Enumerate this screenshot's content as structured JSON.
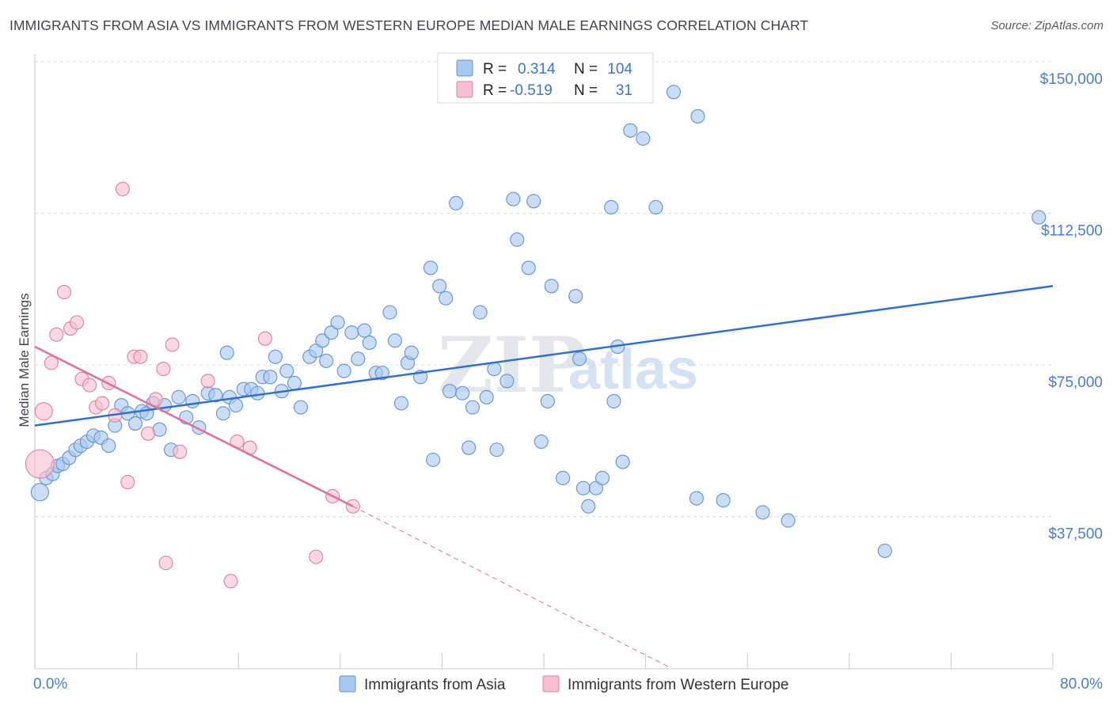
{
  "title": "IMMIGRANTS FROM ASIA VS IMMIGRANTS FROM WESTERN EUROPE MEDIAN MALE EARNINGS CORRELATION CHART",
  "source": "Source: ZipAtlas.com",
  "watermark": {
    "zip": "ZIP",
    "atlas": "atlas"
  },
  "legend": {
    "r_label": "R =",
    "n_label": "N =",
    "rows": [
      {
        "r": "0.314",
        "n": "104",
        "color": "#a9c8ef",
        "stroke": "#5f93d8"
      },
      {
        "r": "-0.519",
        "n": "31",
        "color": "#f7bfd1",
        "stroke": "#e0809f"
      }
    ]
  },
  "colors": {
    "asia_fill": "#a9c8ef",
    "asia_stroke": "#5f93d8",
    "asia_line": "#2f6fcf",
    "europe_fill": "#f7bfd1",
    "europe_stroke": "#e0809f",
    "europe_line": "#e0709a",
    "axis_text": "#4a7bd0",
    "grid": "#d8dbe0"
  },
  "chart_data": {
    "type": "scatter",
    "xlabel": "",
    "ylabel": "Median Male Earnings",
    "xlim": [
      0,
      80
    ],
    "ylim": [
      0,
      150000
    ],
    "x_tick_labels": [
      "0.0%",
      "80.0%"
    ],
    "y_ticks": [
      37500,
      75000,
      112500,
      150000
    ],
    "y_tick_labels": [
      "$37,500",
      "$75,000",
      "$112,500",
      "$150,000"
    ],
    "grid": true,
    "legend_position": "top-center",
    "series": [
      {
        "name": "Immigrants from Asia",
        "trend": {
          "x": [
            0,
            80
          ],
          "y": [
            60000,
            94500
          ]
        },
        "points": [
          [
            0.4,
            43500
          ],
          [
            0.9,
            47000
          ],
          [
            1.4,
            48000
          ],
          [
            1.8,
            50000
          ],
          [
            2.2,
            50500
          ],
          [
            2.7,
            52000
          ],
          [
            3.2,
            54000
          ],
          [
            3.6,
            55000
          ],
          [
            4.1,
            56000
          ],
          [
            4.6,
            57500
          ],
          [
            5.2,
            57000
          ],
          [
            5.8,
            55000
          ],
          [
            6.3,
            60000
          ],
          [
            6.8,
            65000
          ],
          [
            7.3,
            63000
          ],
          [
            7.9,
            60500
          ],
          [
            8.4,
            63500
          ],
          [
            8.8,
            63000
          ],
          [
            9.3,
            65500
          ],
          [
            9.8,
            59000
          ],
          [
            10.2,
            65000
          ],
          [
            10.7,
            54000
          ],
          [
            11.3,
            67000
          ],
          [
            11.9,
            62000
          ],
          [
            12.4,
            66000
          ],
          [
            12.9,
            59500
          ],
          [
            13.6,
            68000
          ],
          [
            14.2,
            67500
          ],
          [
            14.8,
            63000
          ],
          [
            15.3,
            67000
          ],
          [
            15.1,
            78000
          ],
          [
            15.8,
            65000
          ],
          [
            16.4,
            69000
          ],
          [
            17.0,
            69000
          ],
          [
            17.5,
            68000
          ],
          [
            17.9,
            72000
          ],
          [
            18.5,
            72000
          ],
          [
            18.9,
            77000
          ],
          [
            19.4,
            68500
          ],
          [
            19.8,
            73500
          ],
          [
            20.4,
            70500
          ],
          [
            20.9,
            64500
          ],
          [
            21.6,
            77000
          ],
          [
            22.1,
            78500
          ],
          [
            22.6,
            81000
          ],
          [
            22.9,
            76000
          ],
          [
            23.3,
            83000
          ],
          [
            23.8,
            85500
          ],
          [
            24.3,
            73500
          ],
          [
            24.9,
            83000
          ],
          [
            25.4,
            76500
          ],
          [
            25.9,
            83500
          ],
          [
            26.3,
            80500
          ],
          [
            26.8,
            73000
          ],
          [
            27.3,
            73000
          ],
          [
            27.9,
            88000
          ],
          [
            28.3,
            81000
          ],
          [
            28.8,
            65500
          ],
          [
            29.3,
            75500
          ],
          [
            29.6,
            78000
          ],
          [
            30.3,
            72000
          ],
          [
            31.1,
            99000
          ],
          [
            31.3,
            51500
          ],
          [
            31.8,
            94500
          ],
          [
            32.3,
            91500
          ],
          [
            32.6,
            68500
          ],
          [
            33.1,
            115000
          ],
          [
            33.6,
            68000
          ],
          [
            34.1,
            54500
          ],
          [
            34.4,
            64500
          ],
          [
            35.0,
            88000
          ],
          [
            35.5,
            67000
          ],
          [
            36.1,
            74000
          ],
          [
            36.3,
            54000
          ],
          [
            37.1,
            71000
          ],
          [
            37.6,
            116000
          ],
          [
            37.9,
            106000
          ],
          [
            38.8,
            99000
          ],
          [
            39.2,
            115500
          ],
          [
            39.8,
            56000
          ],
          [
            40.3,
            66000
          ],
          [
            40.6,
            94500
          ],
          [
            41.5,
            47000
          ],
          [
            42.5,
            92000
          ],
          [
            42.8,
            76500
          ],
          [
            43.1,
            44500
          ],
          [
            43.5,
            40000
          ],
          [
            44.1,
            44500
          ],
          [
            44.6,
            47000
          ],
          [
            45.3,
            114000
          ],
          [
            45.5,
            66000
          ],
          [
            45.8,
            79500
          ],
          [
            46.2,
            51000
          ],
          [
            46.8,
            133000
          ],
          [
            47.8,
            131000
          ],
          [
            48.8,
            114000
          ],
          [
            50.2,
            142500
          ],
          [
            52.1,
            136500
          ],
          [
            52.0,
            42000
          ],
          [
            54.1,
            41500
          ],
          [
            57.2,
            38500
          ],
          [
            59.2,
            36500
          ],
          [
            66.8,
            29000
          ],
          [
            78.9,
            111500
          ]
        ]
      },
      {
        "name": "Immigrants from Western Europe",
        "trend": {
          "x": [
            0,
            25
          ],
          "y": [
            79500,
            40000
          ]
        },
        "trend_extension": {
          "x": [
            25,
            50
          ],
          "y": [
            40000,
            0
          ]
        },
        "points": [
          [
            0.4,
            50500
          ],
          [
            0.7,
            63500
          ],
          [
            1.3,
            75500
          ],
          [
            1.7,
            82500
          ],
          [
            2.3,
            93000
          ],
          [
            2.8,
            84000
          ],
          [
            3.3,
            85500
          ],
          [
            3.7,
            71500
          ],
          [
            4.3,
            70000
          ],
          [
            4.8,
            64500
          ],
          [
            5.3,
            65500
          ],
          [
            5.8,
            70500
          ],
          [
            6.3,
            62500
          ],
          [
            6.9,
            118500
          ],
          [
            7.3,
            46000
          ],
          [
            7.8,
            77000
          ],
          [
            8.3,
            77000
          ],
          [
            8.9,
            58000
          ],
          [
            9.5,
            66500
          ],
          [
            10.1,
            74000
          ],
          [
            10.3,
            26000
          ],
          [
            10.8,
            80000
          ],
          [
            11.4,
            53500
          ],
          [
            13.6,
            71000
          ],
          [
            15.4,
            21500
          ],
          [
            15.9,
            56000
          ],
          [
            16.9,
            54500
          ],
          [
            18.1,
            81500
          ],
          [
            22.1,
            27500
          ],
          [
            23.4,
            42500
          ],
          [
            25.0,
            40000
          ]
        ]
      }
    ]
  }
}
